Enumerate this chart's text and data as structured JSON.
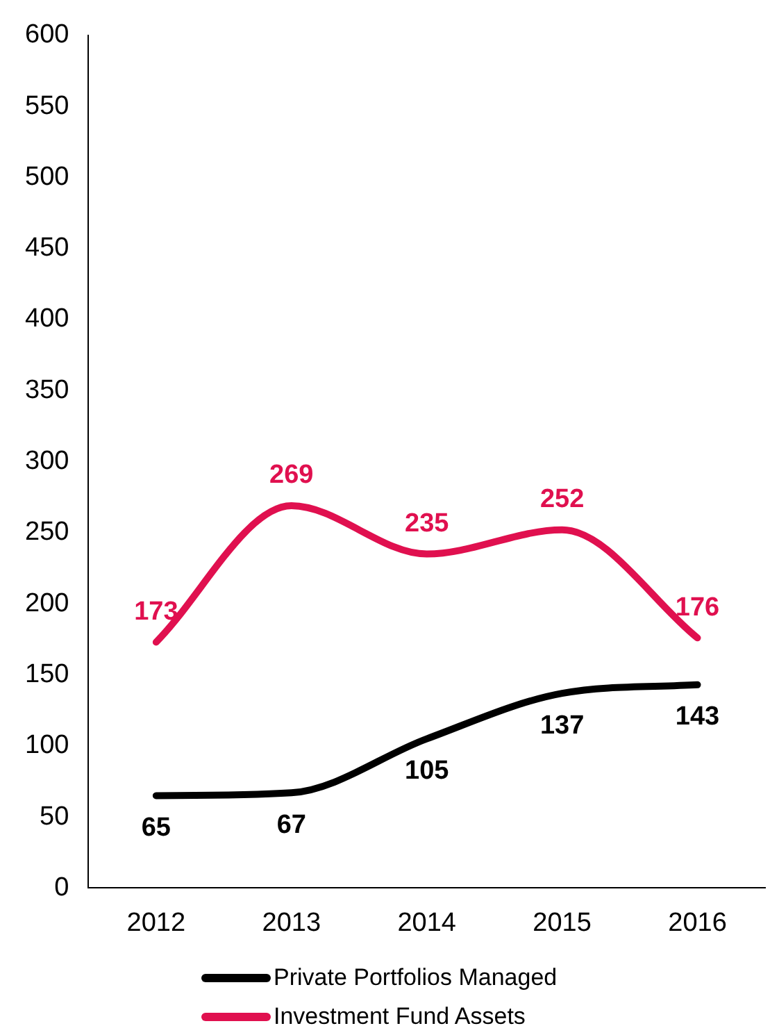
{
  "chart_data": {
    "type": "line",
    "categories": [
      "2012",
      "2013",
      "2014",
      "2015",
      "2016"
    ],
    "series": [
      {
        "name": "Private Portfolios Managed",
        "color": "#000000",
        "values": [
          65,
          67,
          105,
          137,
          143
        ]
      },
      {
        "name": "Investment Fund Assets",
        "color": "#e0104f",
        "values": [
          173,
          269,
          235,
          252,
          176
        ]
      }
    ],
    "ylim": [
      0,
      600
    ],
    "yticks": [
      0,
      50,
      100,
      150,
      200,
      250,
      300,
      350,
      400,
      450,
      500,
      550,
      600
    ],
    "grid": false,
    "legend": "bottom",
    "data_labels": true,
    "marker": "none",
    "line_style": "solid"
  }
}
